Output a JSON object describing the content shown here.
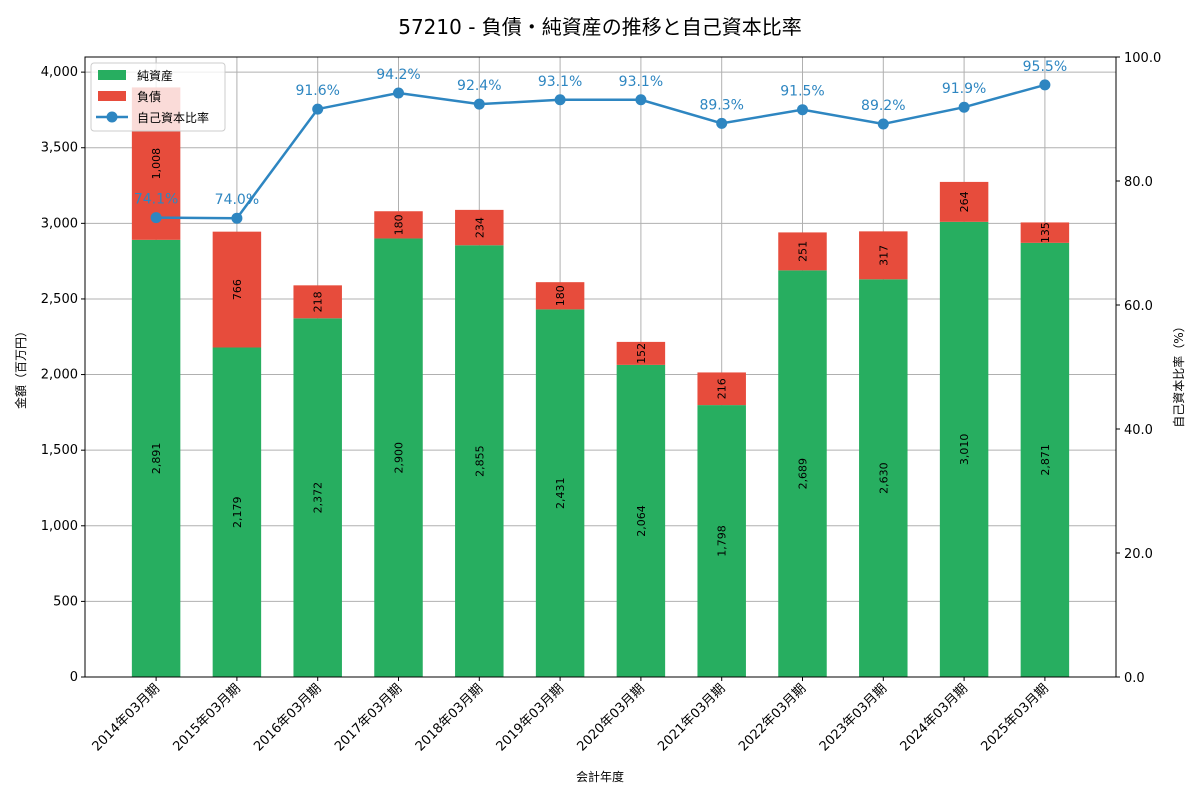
{
  "chart_data": {
    "type": "bar",
    "title": "57210 - 負債・純資産の推移と自己資本比率",
    "xlabel": "会計年度",
    "ylabel": "金額（百万円）",
    "y2label": "自己資本比率（%）",
    "ylim": [
      0,
      4100
    ],
    "y2lim": [
      0,
      100
    ],
    "yticks": [
      "0",
      "500",
      "1,000",
      "1,500",
      "2,000",
      "2,500",
      "3,000",
      "3,500",
      "4,000"
    ],
    "yticks_values": [
      0,
      500,
      1000,
      1500,
      2000,
      2500,
      3000,
      3500,
      4000
    ],
    "y2ticks": [
      "0.0",
      "20.0",
      "40.0",
      "60.0",
      "80.0",
      "100.0"
    ],
    "y2ticks_values": [
      0,
      20,
      40,
      60,
      80,
      100
    ],
    "grid": true,
    "legend_position": "top-left",
    "categories": [
      "2014年03月期",
      "2015年03月期",
      "2016年03月期",
      "2017年03月期",
      "2018年03月期",
      "2019年03月期",
      "2020年03月期",
      "2021年03月期",
      "2022年03月期",
      "2023年03月期",
      "2024年03月期",
      "2025年03月期"
    ],
    "series": [
      {
        "name": "純資産",
        "type": "bar",
        "color": "#27ae60",
        "values": [
          2891,
          2179,
          2372,
          2900,
          2855,
          2431,
          2064,
          1798,
          2689,
          2630,
          3010,
          2871
        ],
        "labels": [
          "2,891",
          "2,179",
          "2,372",
          "2,900",
          "2,855",
          "2,431",
          "2,064",
          "1,798",
          "2,689",
          "2,630",
          "3,010",
          "2,871"
        ]
      },
      {
        "name": "負債",
        "type": "bar",
        "color": "#e74c3c",
        "values": [
          1008,
          766,
          218,
          180,
          234,
          180,
          152,
          216,
          251,
          317,
          264,
          135
        ],
        "labels": [
          "1,008",
          "766",
          "218",
          "180",
          "234",
          "180",
          "152",
          "216",
          "251",
          "317",
          "264",
          "135"
        ]
      },
      {
        "name": "自己資本比率",
        "type": "line",
        "axis": "right",
        "color": "#2e86c1",
        "values": [
          74.1,
          74.0,
          91.6,
          94.2,
          92.4,
          93.1,
          93.1,
          89.3,
          91.5,
          89.2,
          91.9,
          95.5
        ],
        "labels": [
          "74.1%",
          "74.0%",
          "91.6%",
          "94.2%",
          "92.4%",
          "93.1%",
          "93.1%",
          "89.3%",
          "91.5%",
          "89.2%",
          "91.9%",
          "95.5%"
        ]
      }
    ]
  }
}
